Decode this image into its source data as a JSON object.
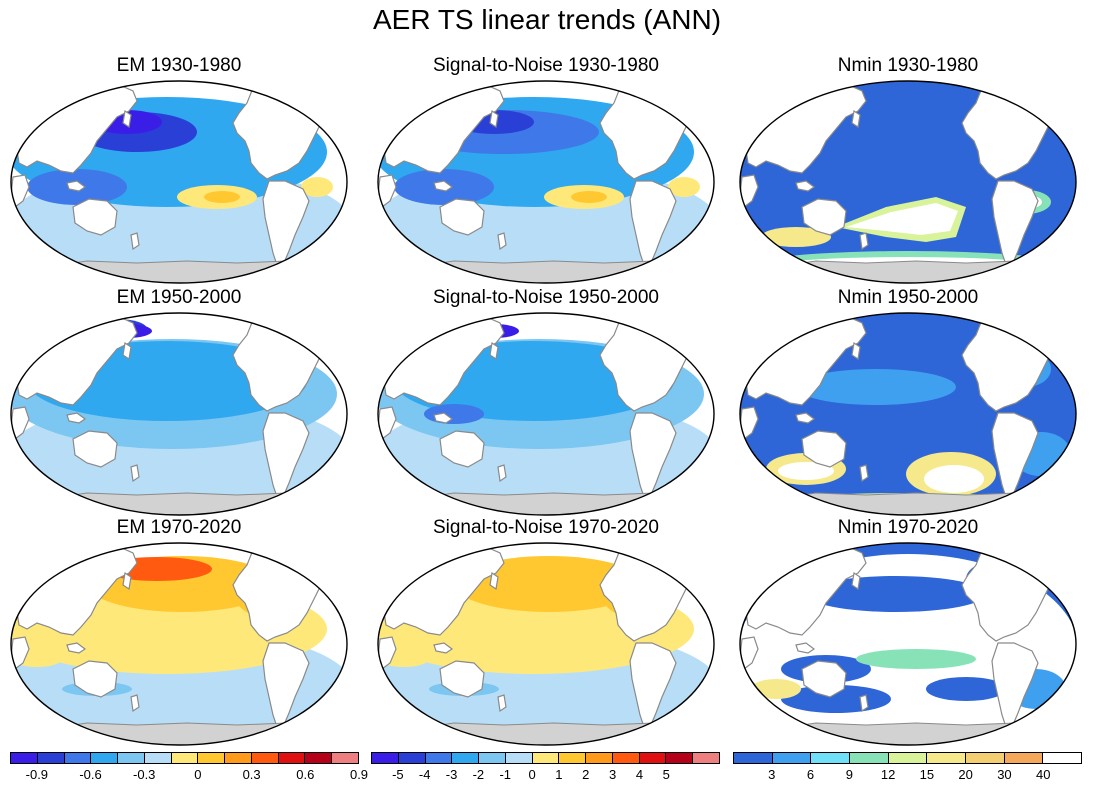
{
  "title": "AER TS linear trends (ANN)",
  "panels": [
    {
      "title": "EM 1930-1980",
      "kind": "em",
      "variant": 0
    },
    {
      "title": "Signal-to-Noise 1930-1980",
      "kind": "snr",
      "variant": 0
    },
    {
      "title": "Nmin 1930-1980",
      "kind": "nmin",
      "variant": 0
    },
    {
      "title": "EM 1950-2000",
      "kind": "em",
      "variant": 1
    },
    {
      "title": "Signal-to-Noise 1950-2000",
      "kind": "snr",
      "variant": 1
    },
    {
      "title": "Nmin 1950-2000",
      "kind": "nmin",
      "variant": 1
    },
    {
      "title": "EM 1970-2020",
      "kind": "em",
      "variant": 2
    },
    {
      "title": "Signal-to-Noise 1970-2020",
      "kind": "snr",
      "variant": 2
    },
    {
      "title": "Nmin 1970-2020",
      "kind": "nmin",
      "variant": 2
    }
  ],
  "colorbars": [
    {
      "name": "em",
      "colors": [
        "#3a1ee8",
        "#2a3fd6",
        "#3f78e8",
        "#2fa8f0",
        "#7cc6f2",
        "#b8def7",
        "#ffe87a",
        "#ffc830",
        "#ff9a1a",
        "#ff5a10",
        "#e01010",
        "#b40018",
        "#ee7f80"
      ],
      "labels": [
        "-0.9",
        "-0.6",
        "-0.3",
        "0",
        "0.3",
        "0.6",
        "0.9"
      ],
      "label_after_swatch": [
        1,
        3,
        5,
        7,
        9,
        11,
        13
      ]
    },
    {
      "name": "snr",
      "colors": [
        "#3a1ee8",
        "#2a3fd6",
        "#3f78e8",
        "#2fa8f0",
        "#7cc6f2",
        "#b8def7",
        "#ffe87a",
        "#ffc830",
        "#ff9a1a",
        "#ff5a10",
        "#e01010",
        "#b40018",
        "#ee7f80"
      ],
      "labels": [
        "-5",
        "-4",
        "-3",
        "-2",
        "-1",
        "0",
        "1",
        "2",
        "3",
        "4",
        "5"
      ],
      "label_after_swatch": [
        1,
        2,
        3,
        4,
        5,
        6,
        7,
        8,
        9,
        10,
        11
      ]
    },
    {
      "name": "nmin",
      "colors": [
        "#2e66d8",
        "#3fa0f0",
        "#6fe0f8",
        "#88e2b8",
        "#d8f39a",
        "#f6e98c",
        "#f4cf72",
        "#f5a85a",
        "#ffffff"
      ],
      "labels": [
        "3",
        "6",
        "9",
        "12",
        "15",
        "20",
        "30",
        "40"
      ],
      "label_after_swatch": [
        1,
        2,
        3,
        4,
        5,
        6,
        7,
        8
      ]
    }
  ],
  "map_colors": {
    "land": "#ffffff",
    "coast": "#8a8a8a",
    "antarctica": "#d2d2d2",
    "outline": "#000000"
  }
}
